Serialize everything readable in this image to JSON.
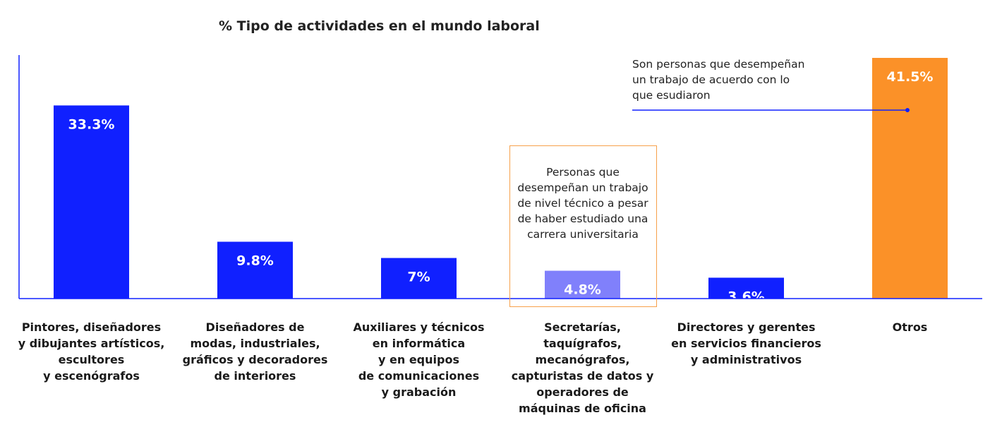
{
  "chart_data": {
    "type": "bar",
    "title": "% Tipo de actividades en el mundo laboral",
    "categories": [
      "Pintores, diseñadores\ny dibujantes artísticos,\nescultores\ny escenógrafos",
      "Diseñadores de\nmodas, industriales,\ngráficos y decoradores\nde interiores",
      "Auxiliares y técnicos\nen informática\ny en equipos\nde comunicaciones\ny grabación",
      "Secretarías,\ntaquígrafos,\nmecanógrafos,\ncapturistas de datos y\noperadores de\nmáquinas de oficina",
      "Directores y gerentes\nen servicios financieros\ny administrativos",
      "Otros"
    ],
    "values": [
      33.3,
      9.8,
      7,
      4.8,
      3.6,
      41.5
    ],
    "data_labels": [
      "33.3%",
      "9.8%",
      "7%",
      "4.8%",
      "3.6%",
      "41.5%"
    ],
    "colors": [
      "#1020ff",
      "#1020ff",
      "#1020ff",
      "#8080fb",
      "#1020ff",
      "#fb9128"
    ],
    "axis_color": "#1020ff",
    "highlight_box_color": "#f7a04a",
    "annotations": [
      "Son personas que desempeñan\nun trabajo de acuerdo con lo\nque esudiaron",
      "Personas que\ndesempeñan un trabajo\nde nivel técnico a pesar\nde haber estudiado una\ncarrera universitaria"
    ],
    "xlabel": "",
    "ylabel": "",
    "ylim": [
      0,
      42
    ],
    "grid": false,
    "legend": "none"
  }
}
